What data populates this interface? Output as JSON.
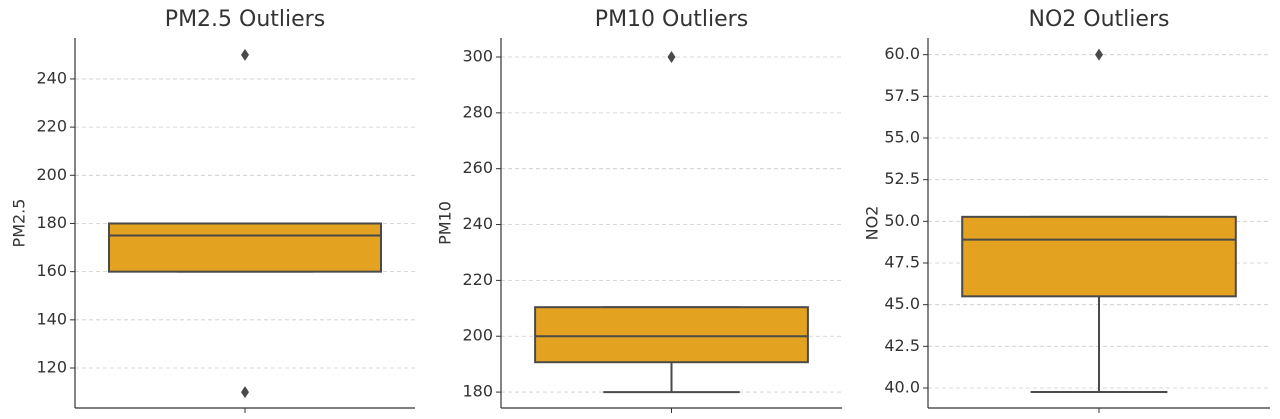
{
  "chart_data": [
    {
      "type": "box",
      "title": "PM2.5 Outliers",
      "ylabel": "PM2.5",
      "color": "#e3a21f",
      "grid": true,
      "q1": 160,
      "median": 175,
      "q3": 180,
      "whislo": 160,
      "whishi": 180,
      "fliers": [
        250,
        110
      ],
      "ylim": [
        103.4,
        257
      ],
      "yticks": [
        120,
        140,
        160,
        180,
        200,
        220,
        240
      ]
    },
    {
      "type": "box",
      "title": "PM10 Outliers",
      "ylabel": "PM10",
      "color": "#e3a21f",
      "grid": true,
      "q1": 190.7,
      "median": 200,
      "q3": 210.4,
      "whislo": 180,
      "whishi": 210.4,
      "fliers": [
        300
      ],
      "ylim": [
        174.3,
        306.8
      ],
      "yticks": [
        180,
        200,
        220,
        240,
        260,
        280,
        300
      ]
    },
    {
      "type": "box",
      "title": "NO2 Outliers",
      "ylabel": "NO2",
      "color": "#e3a21f",
      "grid": true,
      "q1": 45.5,
      "median": 48.9,
      "q3": 50.27,
      "whislo": 39.76,
      "whishi": 50.27,
      "fliers": [
        60
      ],
      "ylim": [
        38.8,
        61.0
      ],
      "yticks": [
        {
          "value": 40,
          "label": "40.0"
        },
        {
          "value": 42.5,
          "label": "42.5"
        },
        {
          "value": 45,
          "label": "45.0"
        },
        {
          "value": 47.5,
          "label": "47.5"
        },
        {
          "value": 50,
          "label": "50.0"
        },
        {
          "value": 52.5,
          "label": "52.5"
        },
        {
          "value": 55,
          "label": "55.0"
        },
        {
          "value": 57.5,
          "label": "57.5"
        },
        {
          "value": 60,
          "label": "60.0"
        }
      ]
    }
  ]
}
